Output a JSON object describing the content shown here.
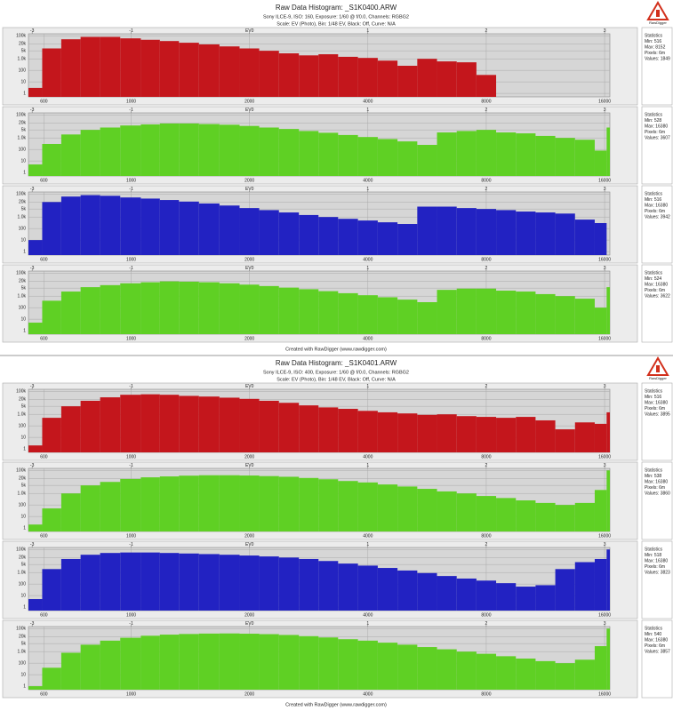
{
  "panels": [
    {
      "title": "Raw Data Histogram: _S1K0400.ARW",
      "info": "Sony ILCE-9, ISO: 160, Exposure: 1/60 @ f/0.0, Channels: RGBG2",
      "scale": "Scale: EV (Photo), Bin: 1/48 EV, Black: Off, Curve: N/A",
      "credit": "Created with RawDigger (www.rawdigger.com)",
      "logo": "RawDigger"
    },
    {
      "title": "Raw Data Histogram: _S1K0401.ARW",
      "info": "Sony ILCE-9, ISO: 400, Exposure: 1/60 @ f/0.0, Channels: RGBG2",
      "scale": "Scale: EV (Photo), Bin: 1/48 EV, Black: Off, Curve: N/A",
      "credit": "Created with RawDigger (www.rawdigger.com)",
      "logo": "RawDigger"
    }
  ],
  "chart_data": [
    {
      "type": "histogram",
      "color": "#c4161c",
      "log_scale": true,
      "grid": true,
      "x": [
        560,
        630,
        700,
        790,
        880,
        1000,
        1120,
        1250,
        1400,
        1580,
        1780,
        2000,
        2240,
        2520,
        2830,
        3170,
        3560,
        4000,
        4490,
        5040,
        5660,
        6350,
        7130,
        8000,
        8980,
        10080,
        11310,
        12700,
        14250,
        16000,
        16380
      ],
      "values": [
        3,
        8000,
        50000,
        80000,
        80000,
        60000,
        45000,
        35000,
        25000,
        18000,
        12000,
        8000,
        5000,
        3000,
        2000,
        2500,
        1500,
        1200,
        700,
        250,
        1000,
        600,
        500,
        40,
        null,
        null,
        null,
        null,
        null,
        null,
        null
      ],
      "xlim": [
        548,
        16500
      ],
      "xticks": [
        600,
        1000,
        2000,
        4000,
        8000,
        16000
      ],
      "x2ticks": [
        {
          "value": 560,
          "label": "-3"
        },
        {
          "value": 1000,
          "label": "-1"
        },
        {
          "value": 2000,
          "label": "EV0"
        },
        {
          "value": 4000,
          "label": "1"
        },
        {
          "value": 8000,
          "label": "2"
        },
        {
          "value": 16000,
          "label": "3"
        }
      ],
      "ylim": [
        0.5,
        150000
      ],
      "yticks": [
        1,
        10,
        100,
        {
          "value": 1000,
          "label": "1.0k"
        },
        {
          "value": 5000,
          "label": "5k"
        },
        {
          "value": 20000,
          "label": "20k"
        },
        {
          "value": 100000,
          "label": "100k"
        }
      ],
      "stats": [
        "Statistics",
        "Min: 516",
        "Max: 8152",
        "Pixels: 6m",
        "Values: 1849"
      ]
    },
    {
      "type": "histogram",
      "color": "#5fd024",
      "log_scale": true,
      "grid": true,
      "x": [
        560,
        630,
        700,
        790,
        880,
        1000,
        1120,
        1250,
        1400,
        1580,
        1780,
        2000,
        2240,
        2520,
        2830,
        3170,
        3560,
        4000,
        4490,
        5040,
        5660,
        6350,
        7130,
        8000,
        8980,
        10080,
        11310,
        12700,
        14250,
        16000,
        16380
      ],
      "values": [
        5,
        300,
        2000,
        5000,
        8000,
        12000,
        15000,
        18000,
        18000,
        16000,
        14000,
        11000,
        8000,
        6000,
        4000,
        2800,
        1800,
        1200,
        800,
        500,
        250,
        3000,
        4000,
        5000,
        3000,
        2500,
        1500,
        1000,
        700,
        80,
        8000
      ],
      "xlim": [
        548,
        16500
      ],
      "xticks": [
        600,
        1000,
        2000,
        4000,
        8000,
        16000
      ],
      "x2ticks": [
        {
          "value": 560,
          "label": "-3"
        },
        {
          "value": 1000,
          "label": "-1"
        },
        {
          "value": 2000,
          "label": "EV0"
        },
        {
          "value": 4000,
          "label": "1"
        },
        {
          "value": 8000,
          "label": "2"
        },
        {
          "value": 16000,
          "label": "3"
        }
      ],
      "ylim": [
        0.5,
        150000
      ],
      "yticks": [
        1,
        10,
        100,
        {
          "value": 1000,
          "label": "1.0k"
        },
        {
          "value": 5000,
          "label": "5k"
        },
        {
          "value": 20000,
          "label": "20k"
        },
        {
          "value": 100000,
          "label": "100k"
        }
      ],
      "stats": [
        "Statistics",
        "Min: 528",
        "Max: 16380",
        "Pixels: 6m",
        "Values: 3607"
      ]
    },
    {
      "type": "histogram",
      "color": "#2222c2",
      "log_scale": true,
      "grid": true,
      "x": [
        560,
        630,
        700,
        790,
        880,
        1000,
        1120,
        1250,
        1400,
        1580,
        1780,
        2000,
        2240,
        2520,
        2830,
        3170,
        3560,
        4000,
        4490,
        5040,
        5660,
        6350,
        7130,
        8000,
        8980,
        10080,
        11310,
        12700,
        14250,
        16000,
        16380
      ],
      "values": [
        10,
        20000,
        60000,
        80000,
        70000,
        50000,
        40000,
        30000,
        22000,
        15000,
        10000,
        6000,
        4000,
        2500,
        1500,
        1000,
        700,
        500,
        350,
        250,
        8000,
        8000,
        6000,
        5000,
        4000,
        3000,
        2500,
        2000,
        600,
        300,
        null
      ],
      "xlim": [
        548,
        16500
      ],
      "xticks": [
        600,
        1000,
        2000,
        4000,
        8000,
        16000
      ],
      "x2ticks": [
        {
          "value": 560,
          "label": "-3"
        },
        {
          "value": 1000,
          "label": "-1"
        },
        {
          "value": 2000,
          "label": "EV0"
        },
        {
          "value": 4000,
          "label": "1"
        },
        {
          "value": 8000,
          "label": "2"
        },
        {
          "value": 16000,
          "label": "3"
        }
      ],
      "ylim": [
        0.5,
        150000
      ],
      "yticks": [
        1,
        10,
        100,
        {
          "value": 1000,
          "label": "1.0k"
        },
        {
          "value": 5000,
          "label": "5k"
        },
        {
          "value": 20000,
          "label": "20k"
        },
        {
          "value": 100000,
          "label": "100k"
        }
      ],
      "stats": [
        "Statistics",
        "Min: 516",
        "Max: 16380",
        "Pixels: 6m",
        "Values: 3942"
      ]
    },
    {
      "type": "histogram",
      "color": "#5fd024",
      "log_scale": true,
      "grid": true,
      "x": [
        560,
        630,
        700,
        790,
        880,
        1000,
        1120,
        1250,
        1400,
        1580,
        1780,
        2000,
        2240,
        2520,
        2830,
        3170,
        3560,
        4000,
        4490,
        5040,
        5660,
        6350,
        7130,
        8000,
        8980,
        10080,
        11310,
        12700,
        14250,
        16000,
        16380
      ],
      "values": [
        5,
        400,
        2500,
        6000,
        9000,
        13000,
        16000,
        19000,
        18000,
        16000,
        13000,
        10000,
        7500,
        5500,
        4000,
        2700,
        1800,
        1200,
        800,
        500,
        300,
        3500,
        4500,
        4500,
        3000,
        2500,
        1500,
        1000,
        600,
        100,
        6000
      ],
      "xlim": [
        548,
        16500
      ],
      "xticks": [
        600,
        1000,
        2000,
        4000,
        8000,
        16000
      ],
      "x2ticks": [
        {
          "value": 560,
          "label": "-3"
        },
        {
          "value": 1000,
          "label": "-1"
        },
        {
          "value": 2000,
          "label": "EV0"
        },
        {
          "value": 4000,
          "label": "1"
        },
        {
          "value": 8000,
          "label": "2"
        },
        {
          "value": 16000,
          "label": "3"
        }
      ],
      "ylim": [
        0.5,
        150000
      ],
      "yticks": [
        1,
        10,
        100,
        {
          "value": 1000,
          "label": "1.0k"
        },
        {
          "value": 5000,
          "label": "5k"
        },
        {
          "value": 20000,
          "label": "20k"
        },
        {
          "value": 100000,
          "label": "100k"
        }
      ],
      "stats": [
        "Statistics",
        "Min: 524",
        "Max: 16380",
        "Pixels: 6m",
        "Values: 3622"
      ]
    },
    {
      "type": "histogram",
      "color": "#c4161c",
      "log_scale": true,
      "grid": true,
      "x": [
        560,
        630,
        700,
        790,
        880,
        1000,
        1120,
        1250,
        1400,
        1580,
        1780,
        2000,
        2240,
        2520,
        2830,
        3170,
        3560,
        4000,
        4490,
        5040,
        5660,
        6350,
        7130,
        8000,
        8980,
        10080,
        11310,
        12700,
        14250,
        16000,
        16380
      ],
      "values": [
        2,
        500,
        5000,
        15000,
        30000,
        50000,
        55000,
        50000,
        40000,
        35000,
        28000,
        22000,
        15000,
        10000,
        6000,
        4000,
        3000,
        2000,
        1500,
        1200,
        900,
        1000,
        700,
        600,
        500,
        600,
        300,
        50,
        200,
        150,
        1500
      ],
      "xlim": [
        548,
        16500
      ],
      "xticks": [
        600,
        1000,
        2000,
        4000,
        8000,
        16000
      ],
      "x2ticks": [
        {
          "value": 560,
          "label": "-3"
        },
        {
          "value": 1000,
          "label": "-1"
        },
        {
          "value": 2000,
          "label": "EV0"
        },
        {
          "value": 4000,
          "label": "1"
        },
        {
          "value": 8000,
          "label": "2"
        },
        {
          "value": 16000,
          "label": "3"
        }
      ],
      "ylim": [
        0.5,
        150000
      ],
      "yticks": [
        1,
        10,
        100,
        {
          "value": 1000,
          "label": "1.0k"
        },
        {
          "value": 5000,
          "label": "5k"
        },
        {
          "value": 20000,
          "label": "20k"
        },
        {
          "value": 100000,
          "label": "100k"
        }
      ],
      "stats": [
        "Statistics",
        "Min: 516",
        "Max: 16380",
        "Pixels: 6m",
        "Values: 3895"
      ]
    },
    {
      "type": "histogram",
      "color": "#5fd024",
      "log_scale": true,
      "grid": true,
      "x": [
        560,
        630,
        700,
        790,
        880,
        1000,
        1120,
        1250,
        1400,
        1580,
        1780,
        2000,
        2240,
        2520,
        2830,
        3170,
        3560,
        4000,
        4490,
        5040,
        5660,
        6350,
        7130,
        8000,
        8980,
        10080,
        11310,
        12700,
        14250,
        16000,
        16380
      ],
      "values": [
        2,
        50,
        1000,
        5000,
        10000,
        18000,
        25000,
        30000,
        35000,
        38000,
        38000,
        36000,
        32000,
        28000,
        22000,
        17000,
        12000,
        9000,
        6000,
        4000,
        2500,
        1500,
        1000,
        600,
        400,
        250,
        150,
        100,
        150,
        2000,
        100000
      ],
      "xlim": [
        548,
        16500
      ],
      "xticks": [
        600,
        1000,
        2000,
        4000,
        8000,
        16000
      ],
      "x2ticks": [
        {
          "value": 560,
          "label": "-3"
        },
        {
          "value": 1000,
          "label": "-1"
        },
        {
          "value": 2000,
          "label": "EV0"
        },
        {
          "value": 4000,
          "label": "1"
        },
        {
          "value": 8000,
          "label": "2"
        },
        {
          "value": 16000,
          "label": "3"
        }
      ],
      "ylim": [
        0.5,
        150000
      ],
      "yticks": [
        1,
        10,
        100,
        {
          "value": 1000,
          "label": "1.0k"
        },
        {
          "value": 5000,
          "label": "5k"
        },
        {
          "value": 20000,
          "label": "20k"
        },
        {
          "value": 100000,
          "label": "100k"
        }
      ],
      "stats": [
        "Statistics",
        "Min: 538",
        "Max: 16380",
        "Pixels: 6m",
        "Values: 3860"
      ]
    },
    {
      "type": "histogram",
      "color": "#2222c2",
      "log_scale": true,
      "grid": true,
      "x": [
        560,
        630,
        700,
        790,
        880,
        1000,
        1120,
        1250,
        1400,
        1580,
        1780,
        2000,
        2240,
        2520,
        2830,
        3170,
        3560,
        4000,
        4490,
        5040,
        5660,
        6350,
        7130,
        8000,
        8980,
        10080,
        11310,
        12700,
        14250,
        16000,
        16380
      ],
      "values": [
        5,
        2000,
        15000,
        35000,
        50000,
        55000,
        55000,
        50000,
        45000,
        40000,
        35000,
        30000,
        25000,
        20000,
        15000,
        10000,
        6000,
        4000,
        2500,
        1500,
        900,
        500,
        300,
        200,
        120,
        60,
        80,
        2000,
        8000,
        15000,
        100000
      ],
      "xlim": [
        548,
        16500
      ],
      "xticks": [
        600,
        1000,
        2000,
        4000,
        8000,
        16000
      ],
      "x2ticks": [
        {
          "value": 560,
          "label": "-3"
        },
        {
          "value": 1000,
          "label": "-1"
        },
        {
          "value": 2000,
          "label": "EV0"
        },
        {
          "value": 4000,
          "label": "1"
        },
        {
          "value": 8000,
          "label": "2"
        },
        {
          "value": 16000,
          "label": "3"
        }
      ],
      "ylim": [
        0.5,
        150000
      ],
      "yticks": [
        1,
        10,
        100,
        {
          "value": 1000,
          "label": "1.0k"
        },
        {
          "value": 5000,
          "label": "5k"
        },
        {
          "value": 20000,
          "label": "20k"
        },
        {
          "value": 100000,
          "label": "100k"
        }
      ],
      "stats": [
        "Statistics",
        "Min: 518",
        "Max: 16380",
        "Pixels: 6m",
        "Values: 3823"
      ]
    },
    {
      "type": "histogram",
      "color": "#5fd024",
      "log_scale": true,
      "grid": true,
      "x": [
        560,
        630,
        700,
        790,
        880,
        1000,
        1120,
        1250,
        1400,
        1580,
        1780,
        2000,
        2240,
        2520,
        2830,
        3170,
        3560,
        4000,
        4490,
        5040,
        5660,
        6350,
        7130,
        8000,
        8980,
        10080,
        11310,
        12700,
        14250,
        16000,
        16380
      ],
      "values": [
        1,
        40,
        800,
        4000,
        9000,
        16000,
        24000,
        30000,
        34000,
        37000,
        38000,
        36000,
        33000,
        28000,
        22000,
        17000,
        12000,
        9000,
        6000,
        4000,
        2500,
        1600,
        1000,
        650,
        400,
        250,
        150,
        100,
        200,
        3000,
        100000
      ],
      "xlim": [
        548,
        16500
      ],
      "xticks": [
        600,
        1000,
        2000,
        4000,
        8000,
        16000
      ],
      "x2ticks": [
        {
          "value": 560,
          "label": "-3"
        },
        {
          "value": 1000,
          "label": "-1"
        },
        {
          "value": 2000,
          "label": "EV0"
        },
        {
          "value": 4000,
          "label": "1"
        },
        {
          "value": 8000,
          "label": "2"
        },
        {
          "value": 16000,
          "label": "3"
        }
      ],
      "ylim": [
        0.5,
        150000
      ],
      "yticks": [
        1,
        10,
        100,
        {
          "value": 1000,
          "label": "1.0k"
        },
        {
          "value": 5000,
          "label": "5k"
        },
        {
          "value": 20000,
          "label": "20k"
        },
        {
          "value": 100000,
          "label": "100k"
        }
      ],
      "stats": [
        "Statistics",
        "Min: 540",
        "Max: 16380",
        "Pixels: 6m",
        "Values: 3857"
      ]
    }
  ]
}
